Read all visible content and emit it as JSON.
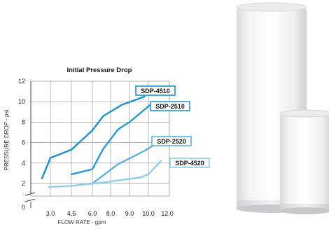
{
  "chart_data": {
    "type": "line",
    "title": "Initial Pressure Drop",
    "xlabel": "FLOW RATE - gpm",
    "ylabel": "PRESSURE DROP - psi",
    "x_ticks": [
      "3.0",
      "4.5",
      "6.0",
      "8.0",
      "9.0",
      "10.0",
      "12.0"
    ],
    "y_ticks": [
      "0",
      "2",
      "4",
      "6",
      "8",
      "10",
      "12"
    ],
    "ylim": [
      0,
      12
    ],
    "grid": true,
    "series": [
      {
        "name": "SDP-4510",
        "color": "#1e8fcf",
        "points": [
          [
            2.4,
            2.5
          ],
          [
            3.0,
            4.5
          ],
          [
            4.5,
            5.3
          ],
          [
            6.0,
            7.2
          ],
          [
            7.2,
            8.6
          ],
          [
            8.6,
            9.7
          ],
          [
            9.8,
            10.5
          ]
        ]
      },
      {
        "name": "SDP-2510",
        "color": "#2899d6",
        "points": [
          [
            4.5,
            2.9
          ],
          [
            6.0,
            3.4
          ],
          [
            7.2,
            5.4
          ],
          [
            8.4,
            7.3
          ],
          [
            9.0,
            8.0
          ],
          [
            10.2,
            9.7
          ]
        ]
      },
      {
        "name": "SDP-2520",
        "color": "#5ab2e2",
        "points": [
          [
            5.2,
            1.9
          ],
          [
            6.0,
            2.0
          ],
          [
            7.2,
            2.8
          ],
          [
            8.4,
            3.9
          ],
          [
            9.8,
            5.2
          ],
          [
            11.0,
            6.0
          ]
        ]
      },
      {
        "name": "SDP-4520",
        "color": "#8fcbed",
        "points": [
          [
            2.9,
            1.7
          ],
          [
            4.5,
            1.8
          ],
          [
            6.0,
            2.0
          ],
          [
            7.3,
            2.1
          ],
          [
            8.4,
            2.3
          ],
          [
            9.6,
            2.6
          ],
          [
            10.0,
            2.9
          ],
          [
            11.3,
            4.2
          ]
        ]
      }
    ]
  }
}
